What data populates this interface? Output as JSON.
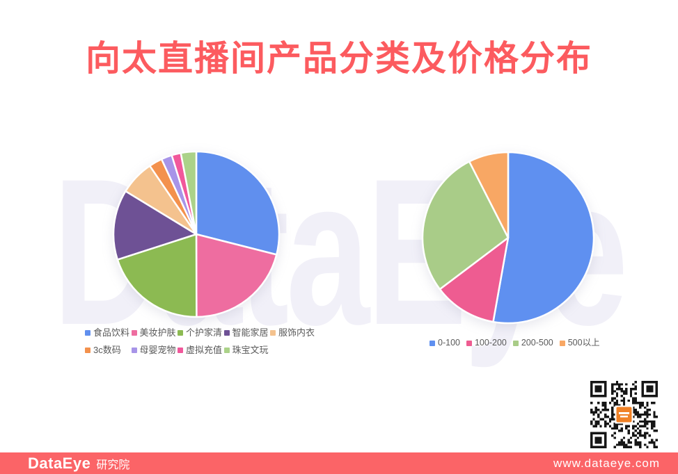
{
  "title": "向太直播间产品分类及价格分布",
  "watermark": "DataEye",
  "chart_data": [
    {
      "type": "pie",
      "labels": [
        "食品饮料",
        "美妆护肤",
        "个护家清",
        "智能家居",
        "服饰内衣",
        "3c数码",
        "母婴宠物",
        "虚拟充值",
        "珠宝文玩"
      ],
      "values": [
        29.0,
        21.0,
        20.1,
        13.7,
        6.8,
        2.6,
        2.1,
        1.8,
        3.0
      ],
      "unit": "percent",
      "colors": [
        "#608fee",
        "#ee6da0",
        "#8cba52",
        "#6e5195",
        "#f4c28e",
        "#f3914d",
        "#a794e8",
        "#f1589b",
        "#abd289"
      ],
      "start_angle": "top",
      "direction": "clockwise",
      "legend_position": "bottom"
    },
    {
      "type": "pie",
      "labels": [
        "0-100",
        "100-200",
        "200-500",
        "500以上"
      ],
      "values": [
        52.8,
        11.9,
        27.8,
        7.5
      ],
      "unit": "percent",
      "colors": [
        "#5f90f0",
        "#ee5c91",
        "#a9cc88",
        "#f8a764"
      ],
      "start_angle": "top",
      "direction": "clockwise",
      "legend_position": "bottom"
    }
  ],
  "footer": {
    "brand": "DataEye",
    "brand_suffix": "研究院",
    "website": "www.dataeye.com"
  },
  "colors": {
    "title": "#fc5b5f",
    "footer_background": "#fb6467",
    "watermark": "#f1f0f8",
    "legend_text": "#595959"
  }
}
